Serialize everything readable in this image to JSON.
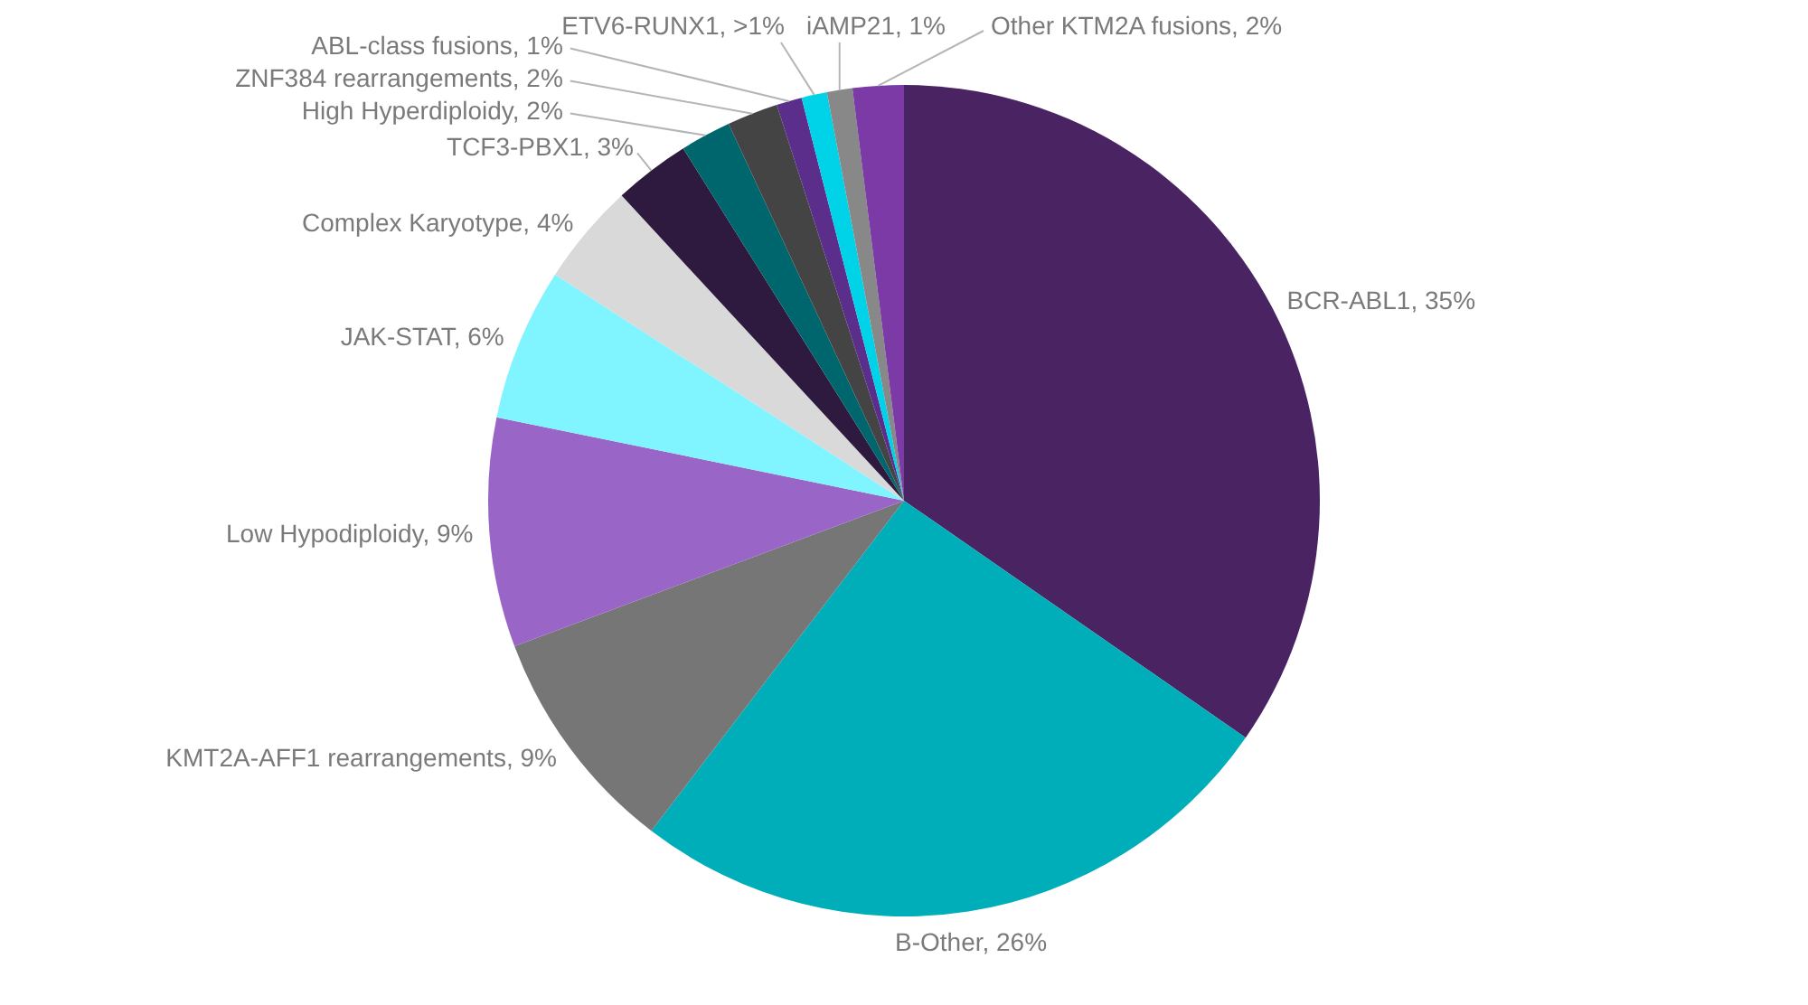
{
  "chart_data": {
    "type": "pie",
    "categories": [
      "BCR-ABL1",
      "B-Other",
      "KMT2A-AFF1 rearrangements",
      "Low Hypodiploidy",
      "JAK-STAT",
      "Complex Karyotype",
      "TCF3-PBX1",
      "High Hyperdiploidy",
      "ZNF384 rearrangements",
      "ABL-class fusions",
      "ETV6-RUNX1",
      "iAMP21",
      "Other KTM2A fusions"
    ],
    "values": [
      35,
      26,
      9,
      9,
      6,
      4,
      3,
      2,
      2,
      1,
      1,
      1,
      2
    ],
    "value_labels": [
      "35%",
      "26%",
      "9%",
      "9%",
      "6%",
      "4%",
      "3%",
      "2%",
      "2%",
      "1%",
      ">1%",
      "1%",
      "2%"
    ],
    "colors": [
      "#4a2362",
      "#00aeb9",
      "#767676",
      "#9966c8",
      "#80f4ff",
      "#d9d9d9",
      "#2d1a3e",
      "#00666e",
      "#444444",
      "#5b2e8c",
      "#00d3e8",
      "#888888",
      "#7b3aa6"
    ]
  }
}
